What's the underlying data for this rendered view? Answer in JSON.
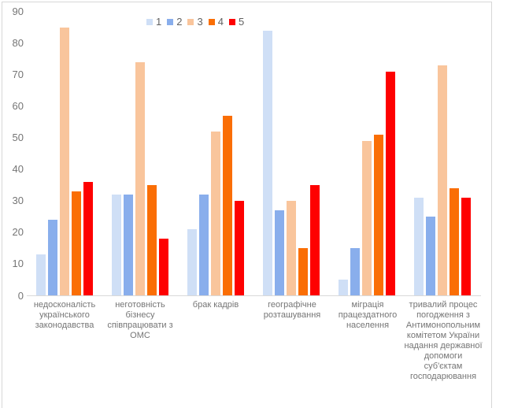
{
  "chart_data": {
    "type": "bar",
    "title": "",
    "legend_position": "top",
    "grid": false,
    "ylim": [
      0,
      90
    ],
    "yticks": [
      0,
      10,
      20,
      30,
      40,
      50,
      60,
      70,
      80,
      90
    ],
    "categories": [
      "недосконалість українського законодавства",
      "неготовність бізнесу співпрацювати з ОМС",
      "брак кадрів",
      "географічне розташування",
      "міграція працездатного населення",
      "тривалий процес погодження з Антимонопольним комітетом України надання державної допомоги суб'єктам господарювання"
    ],
    "category_label_lines": [
      [
        "недосконалість",
        "українського",
        "законодавства"
      ],
      [
        "неготовність",
        "бізнесу",
        "співпрацювати з",
        "ОМС"
      ],
      [
        "брак кадрів"
      ],
      [
        "географічне",
        "розташування"
      ],
      [
        "міграція",
        "працездатного",
        "населення"
      ],
      [
        "тривалий процес",
        "погодження з",
        "Антимонопольним",
        "комітетом України",
        "надання державної",
        "допомоги",
        "суб'єктам",
        "господарювання"
      ]
    ],
    "series": [
      {
        "name": "1",
        "color": "#cfdff6",
        "values": [
          13,
          32,
          21,
          84,
          5,
          31
        ]
      },
      {
        "name": "2",
        "color": "#89aeec",
        "values": [
          24,
          32,
          32,
          27,
          15,
          25
        ]
      },
      {
        "name": "3",
        "color": "#f9c59c",
        "values": [
          85,
          74,
          52,
          30,
          49,
          73
        ]
      },
      {
        "name": "4",
        "color": "#fa6e05",
        "values": [
          33,
          35,
          57,
          15,
          51,
          34
        ]
      },
      {
        "name": "5",
        "color": "#fe0101",
        "values": [
          36,
          18,
          30,
          35,
          71,
          31
        ]
      }
    ]
  },
  "colors": {
    "background": "#ffffff",
    "text": "#757575",
    "legend_text": "#616161",
    "axis_line": "#d9d9d9",
    "frame_border": "#d7d7d7"
  }
}
